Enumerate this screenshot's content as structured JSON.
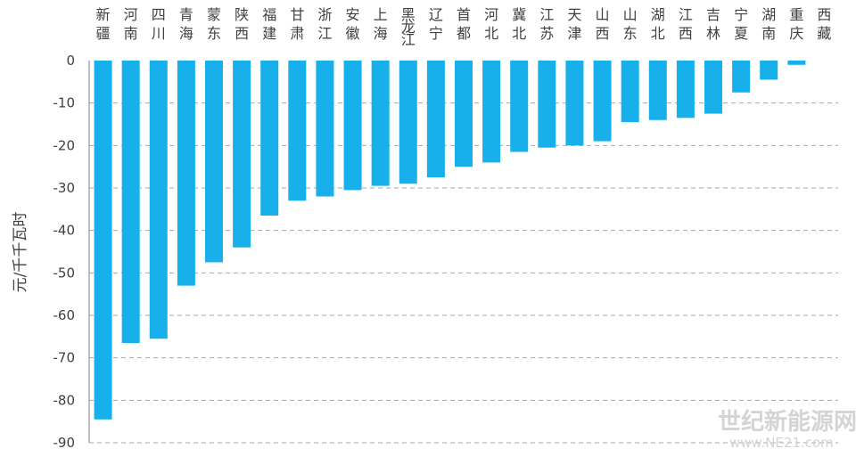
{
  "chart_data": {
    "type": "bar",
    "orientation": "vertical",
    "ylabel": "元/千千瓦时",
    "ylim": [
      -90,
      0
    ],
    "ytick_step": 10,
    "yticks": [
      "0",
      "-10",
      "-20",
      "-30",
      "-40",
      "-50",
      "-60",
      "-70",
      "-80",
      "-90"
    ],
    "categories": [
      "新疆",
      "河南",
      "四川",
      "青海",
      "蒙东",
      "陕西",
      "福建",
      "甘肃",
      "浙江",
      "安徽",
      "上海",
      "黑龙江",
      "辽宁",
      "首都",
      "河北",
      "冀北",
      "江苏",
      "天津",
      "山西",
      "山东",
      "湖北",
      "江西",
      "吉林",
      "宁夏",
      "湖南",
      "重庆",
      "西藏"
    ],
    "values": [
      -84.5,
      -66.5,
      -65.5,
      -53,
      -47.5,
      -44,
      -36.5,
      -33,
      -32,
      -30.5,
      -29.5,
      -29,
      -27.5,
      -25,
      -24,
      -21.5,
      -20.5,
      -20,
      -19,
      -14.5,
      -14,
      -13.5,
      -12.5,
      -7.5,
      -4.5,
      -1,
      0
    ],
    "bar_color": "#17b0ea",
    "grid": "horizontal dashed",
    "legend": "none"
  },
  "watermark": {
    "line1": "世纪新能源网",
    "line2": "www.NE21.com"
  }
}
